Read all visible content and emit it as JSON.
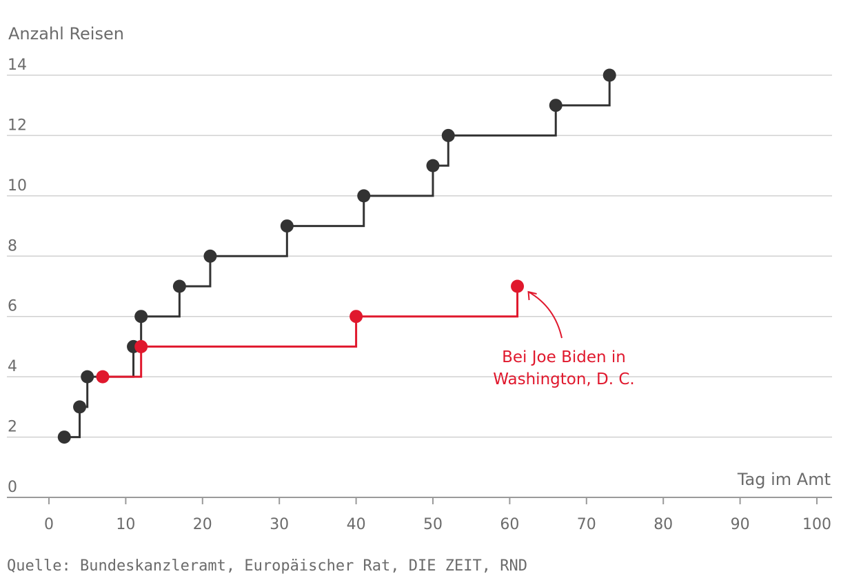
{
  "chart_data": {
    "type": "line",
    "step": true,
    "ylabel": "Anzahl Reisen",
    "xlabel": "Tag im Amt",
    "xlim": [
      0,
      100
    ],
    "ylim": [
      0,
      14
    ],
    "xticks": [
      0,
      10,
      20,
      30,
      40,
      50,
      60,
      70,
      80,
      90,
      100
    ],
    "yticks": [
      0,
      2,
      4,
      6,
      8,
      10,
      12,
      14
    ],
    "grid": true,
    "series": [
      {
        "name": "Schwarz",
        "color": "#333333",
        "points": [
          [
            2,
            2
          ],
          [
            4,
            3
          ],
          [
            5,
            4
          ],
          [
            11,
            5
          ],
          [
            12,
            6
          ],
          [
            17,
            7
          ],
          [
            21,
            8
          ],
          [
            31,
            9
          ],
          [
            41,
            10
          ],
          [
            50,
            11
          ],
          [
            52,
            12
          ],
          [
            66,
            13
          ],
          [
            73,
            14
          ]
        ]
      },
      {
        "name": "Rot",
        "color": "#e0182d",
        "points": [
          [
            7,
            4
          ],
          [
            12,
            5
          ],
          [
            40,
            6
          ],
          [
            61,
            7
          ]
        ]
      }
    ],
    "annotation": {
      "lines": [
        "Bei Joe Biden in",
        "Washington, D. C."
      ],
      "target": [
        61,
        7
      ],
      "color": "#e0182d"
    },
    "source": "Quelle: Bundeskanzleramt, Europäischer Rat, DIE ZEIT, RND"
  }
}
